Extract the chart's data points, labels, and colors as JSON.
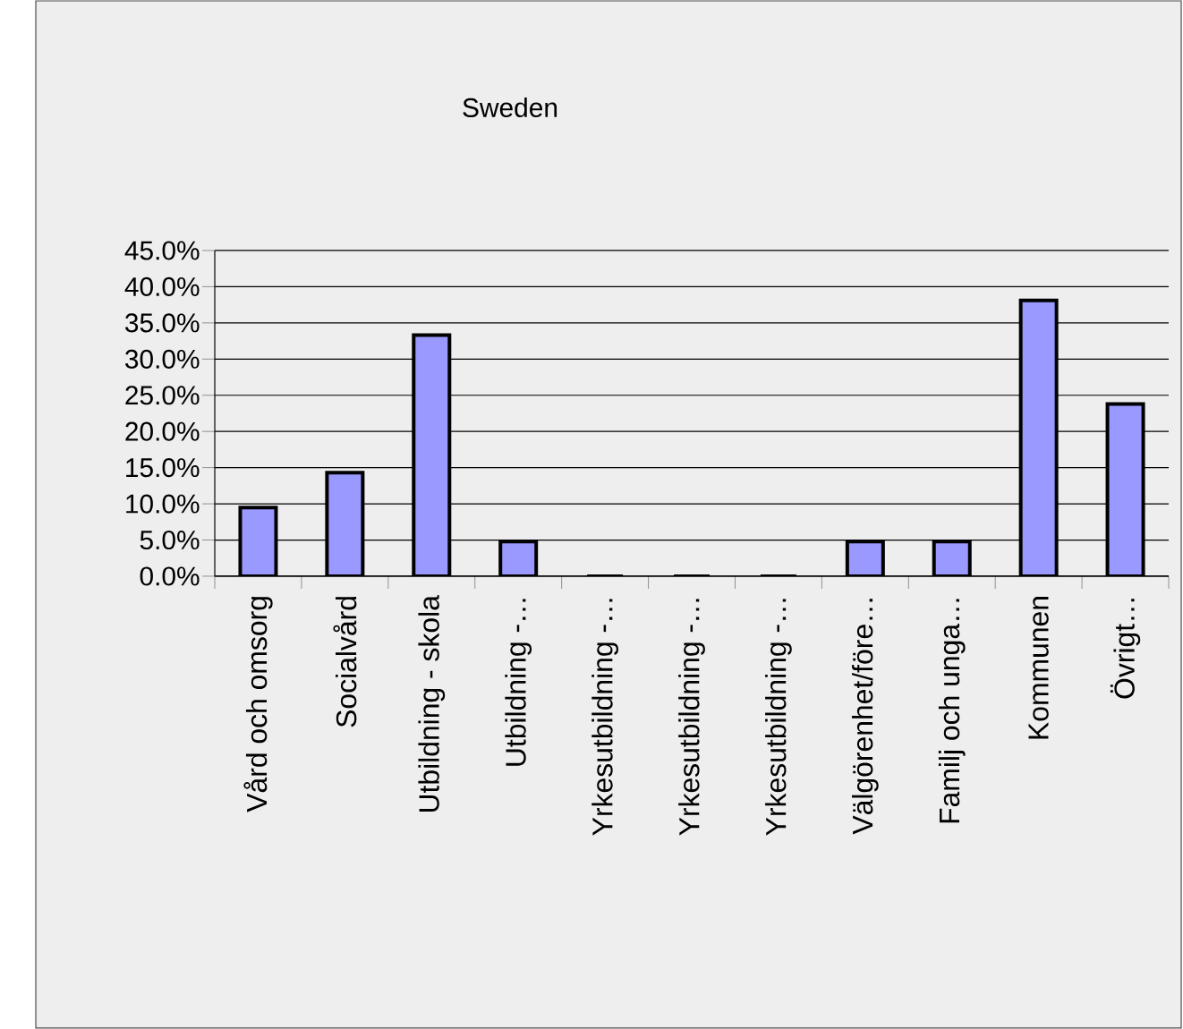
{
  "chart_data": {
    "type": "bar",
    "title": "Sweden",
    "categories": [
      "Vård och omsorg",
      "Socialvård",
      "Utbildning - skola",
      "Utbildning -…",
      "Yrkesutbildning -…",
      "Yrkesutbildning -…",
      "Yrkesutbildning -…",
      "Välgörenhet/före…",
      "Familj och unga…",
      "Kommunen",
      "Övrigt…"
    ],
    "values": [
      9.5,
      14.3,
      33.3,
      4.8,
      0,
      0,
      0,
      4.8,
      4.8,
      38.1,
      23.8
    ],
    "color": "#9999ff",
    "ylim": [
      0,
      45
    ],
    "yticks": [
      {
        "value": 0,
        "label": "0.0%"
      },
      {
        "value": 5,
        "label": "5.0%"
      },
      {
        "value": 10,
        "label": "10.0%"
      },
      {
        "value": 15,
        "label": "15.0%"
      },
      {
        "value": 20,
        "label": "20.0%"
      },
      {
        "value": 25,
        "label": "25.0%"
      },
      {
        "value": 30,
        "label": "30.0%"
      },
      {
        "value": 35,
        "label": "35.0%"
      },
      {
        "value": 40,
        "label": "40.0%"
      },
      {
        "value": 45,
        "label": "45.0%"
      }
    ],
    "grid": "y"
  }
}
